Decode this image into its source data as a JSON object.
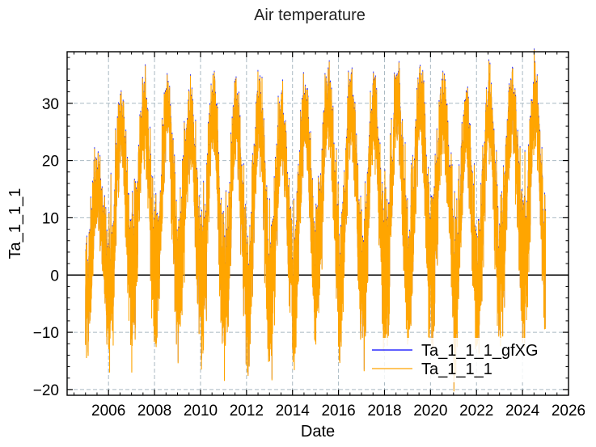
{
  "chart_data": {
    "type": "line",
    "title": "Air temperature",
    "xlabel": "Date",
    "ylabel": "Ta_1_1_1",
    "xlim": [
      2004.2,
      2026.0
    ],
    "ylim": [
      -21,
      39
    ],
    "x_ticks": [
      2006,
      2008,
      2010,
      2012,
      2014,
      2016,
      2018,
      2020,
      2022,
      2024,
      2026
    ],
    "y_ticks": [
      -20,
      -10,
      0,
      10,
      20,
      30
    ],
    "grid": true,
    "zero_line": true,
    "legend_position": "lower-right",
    "data_range": [
      2005.0,
      2025.0
    ],
    "series": [
      {
        "name": "Ta_1_1_1_gfXG",
        "color": "#0000ff",
        "description_values": "daily gap-filled air temperature"
      },
      {
        "name": "Ta_1_1_1",
        "color": "#ffa500"
      }
    ],
    "annual_extremes": [
      {
        "year": 2005,
        "max": 21,
        "min": -14.5
      },
      {
        "year": 2006,
        "max": 32,
        "min": -13
      },
      {
        "year": 2007,
        "max": 33.5,
        "min": -10.5
      },
      {
        "year": 2008,
        "max": 35,
        "min": -12
      },
      {
        "year": 2009,
        "max": 32,
        "min": -10
      },
      {
        "year": 2010,
        "max": 34,
        "min": -16.5
      },
      {
        "year": 2011,
        "max": 33,
        "min": -18.5
      },
      {
        "year": 2012,
        "max": 34,
        "min": -17
      },
      {
        "year": 2013,
        "max": 32,
        "min": -12
      },
      {
        "year": 2014,
        "max": 33,
        "min": -13
      },
      {
        "year": 2015,
        "max": 36,
        "min": -7.5
      },
      {
        "year": 2016,
        "max": 35,
        "min": -13.5
      },
      {
        "year": 2017,
        "max": 34,
        "min": -11
      },
      {
        "year": 2018,
        "max": 35,
        "min": -10
      },
      {
        "year": 2019,
        "max": 36.5,
        "min": -11
      },
      {
        "year": 2020,
        "max": 34,
        "min": -8
      },
      {
        "year": 2021,
        "max": 32,
        "min": -18
      },
      {
        "year": 2022,
        "max": 35,
        "min": -12
      },
      {
        "year": 2023,
        "max": 35.5,
        "min": -8
      },
      {
        "year": 2024,
        "max": 35,
        "min": -8.5
      }
    ]
  }
}
